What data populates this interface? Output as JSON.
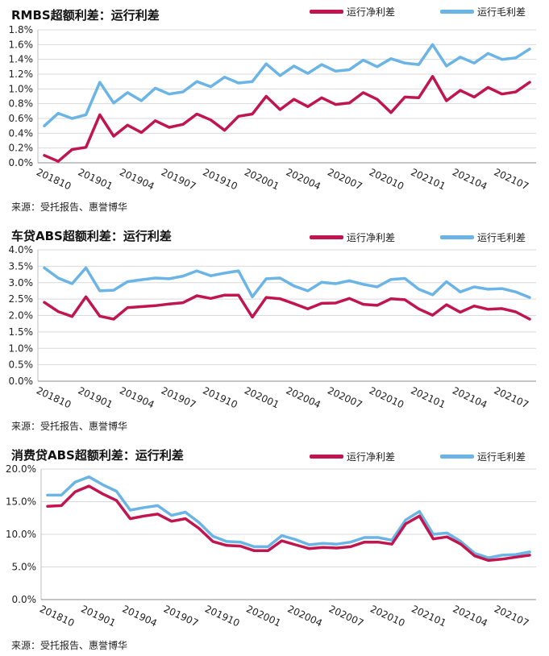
{
  "chart_data": [
    {
      "type": "line",
      "title": "RMBS超额利差：运行利差",
      "ylim": [
        0,
        1.8
      ],
      "yticks": [
        "0.0%",
        "0.2%",
        "0.4%",
        "0.6%",
        "0.8%",
        "1.0%",
        "1.2%",
        "1.4%",
        "1.6%",
        "1.8%"
      ],
      "xtick_labels": [
        "201810",
        "201901",
        "201904",
        "201907",
        "201910",
        "202001",
        "202004",
        "202007",
        "202010",
        "202101",
        "202104",
        "202107"
      ],
      "series": [
        {
          "name": "运行净利差",
          "color": "#c0154f",
          "values": [
            0.1,
            0.02,
            0.18,
            0.21,
            0.65,
            0.36,
            0.51,
            0.41,
            0.57,
            0.48,
            0.52,
            0.66,
            0.58,
            0.44,
            0.63,
            0.66,
            0.9,
            0.72,
            0.86,
            0.76,
            0.88,
            0.79,
            0.81,
            0.95,
            0.86,
            0.68,
            0.89,
            0.88,
            1.17,
            0.84,
            0.98,
            0.89,
            1.02,
            0.93,
            0.96,
            1.09
          ]
        },
        {
          "name": "运行毛利差",
          "color": "#6ab4e6",
          "values": [
            0.5,
            0.67,
            0.6,
            0.65,
            1.09,
            0.81,
            0.95,
            0.84,
            1.01,
            0.93,
            0.96,
            1.1,
            1.03,
            1.16,
            1.08,
            1.1,
            1.34,
            1.18,
            1.31,
            1.21,
            1.33,
            1.24,
            1.26,
            1.39,
            1.3,
            1.41,
            1.35,
            1.33,
            1.6,
            1.31,
            1.43,
            1.35,
            1.48,
            1.4,
            1.42,
            1.54
          ]
        }
      ],
      "source": "来源：受托报告、惠誉博华"
    },
    {
      "type": "line",
      "title": "车贷ABS超额利差：运行利差",
      "ylim": [
        0,
        4.0
      ],
      "yticks": [
        "0.0%",
        "0.5%",
        "1.0%",
        "1.5%",
        "2.0%",
        "2.5%",
        "3.0%",
        "3.5%",
        "4.0%"
      ],
      "xtick_labels": [
        "201810",
        "201901",
        "201904",
        "201907",
        "201910",
        "202001",
        "202004",
        "202007",
        "202010",
        "202101",
        "202104",
        "202107"
      ],
      "series": [
        {
          "name": "运行净利差",
          "color": "#c0154f",
          "values": [
            2.4,
            2.12,
            1.97,
            2.57,
            1.98,
            1.89,
            2.24,
            2.27,
            2.3,
            2.35,
            2.39,
            2.6,
            2.52,
            2.62,
            2.62,
            1.95,
            2.55,
            2.51,
            2.36,
            2.2,
            2.37,
            2.38,
            2.52,
            2.34,
            2.31,
            2.51,
            2.48,
            2.2,
            2.01,
            2.33,
            2.1,
            2.29,
            2.19,
            2.21,
            2.11,
            1.89
          ]
        },
        {
          "name": "运行毛利差",
          "color": "#6ab4e6",
          "values": [
            3.45,
            3.14,
            2.97,
            3.45,
            2.75,
            2.77,
            3.03,
            3.09,
            3.14,
            3.12,
            3.2,
            3.36,
            3.21,
            3.29,
            3.36,
            2.57,
            3.12,
            3.14,
            2.9,
            2.75,
            3.01,
            2.97,
            3.06,
            2.95,
            2.87,
            3.1,
            3.13,
            2.8,
            2.63,
            3.03,
            2.72,
            2.87,
            2.8,
            2.82,
            2.72,
            2.55
          ]
        }
      ],
      "source": "来源：受托报告、惠誉博华"
    },
    {
      "type": "line",
      "title": "消费贷ABS超额利差：运行利差",
      "ylim": [
        0,
        20.0
      ],
      "yticks": [
        "0.0%",
        "5.0%",
        "10.0%",
        "15.0%",
        "20.0%"
      ],
      "xtick_labels": [
        "201810",
        "201901",
        "201904",
        "201907",
        "201910",
        "202001",
        "202004",
        "202007",
        "202010",
        "202101",
        "202104",
        "202107"
      ],
      "series": [
        {
          "name": "运行净利差",
          "color": "#c0154f",
          "values": [
            14.3,
            14.4,
            16.5,
            17.4,
            16.2,
            15.2,
            12.4,
            12.8,
            13.1,
            12.0,
            12.4,
            10.9,
            8.9,
            8.3,
            8.2,
            7.5,
            7.5,
            9.0,
            8.4,
            7.8,
            8.0,
            7.9,
            8.1,
            8.8,
            8.8,
            8.5,
            11.6,
            12.8,
            9.3,
            9.6,
            8.5,
            6.7,
            6.0,
            6.2,
            6.5,
            6.8
          ]
        },
        {
          "name": "运行毛利差",
          "color": "#6ab4e6",
          "values": [
            16.0,
            16.0,
            18.0,
            18.8,
            17.6,
            16.6,
            13.7,
            14.1,
            14.4,
            12.9,
            13.4,
            11.8,
            9.7,
            8.9,
            8.8,
            8.1,
            8.1,
            9.8,
            9.2,
            8.4,
            8.6,
            8.5,
            8.8,
            9.5,
            9.5,
            9.1,
            12.2,
            13.5,
            10.0,
            10.2,
            8.9,
            7.1,
            6.4,
            6.8,
            6.9,
            7.3
          ]
        }
      ],
      "source": "来源：受托报告、惠誉博华"
    }
  ]
}
